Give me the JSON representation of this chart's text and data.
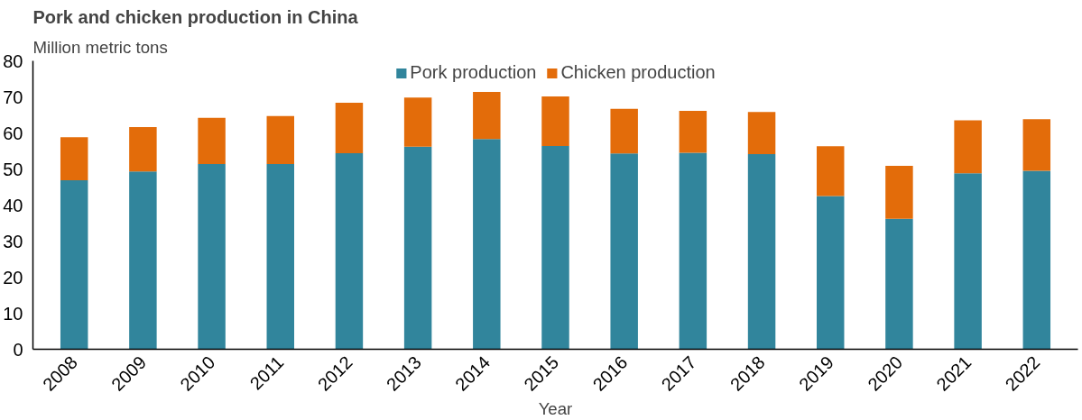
{
  "chart_data": {
    "type": "bar",
    "title": "Pork and chicken production in China",
    "ylabel": "Million metric tons",
    "xlabel": "Year",
    "categories": [
      "2008",
      "2009",
      "2010",
      "2011",
      "2012",
      "2013",
      "2014",
      "2015",
      "2016",
      "2017",
      "2018",
      "2019",
      "2020",
      "2021",
      "2022"
    ],
    "stacked": true,
    "series": [
      {
        "name": "Pork production",
        "color": "#31859c",
        "values": [
          46.9,
          49.3,
          51.4,
          51.4,
          54.4,
          56.2,
          58.3,
          56.4,
          54.3,
          54.5,
          54.1,
          42.5,
          36.2,
          48.8,
          49.5
        ]
      },
      {
        "name": "Chicken production",
        "color": "#e36c0a",
        "values": [
          11.9,
          12.3,
          12.8,
          13.3,
          14.0,
          13.6,
          13.1,
          13.7,
          12.4,
          11.6,
          11.7,
          13.8,
          14.7,
          14.7,
          14.3
        ]
      }
    ],
    "ylim": [
      0,
      80
    ],
    "yticks": [
      0,
      10,
      20,
      30,
      40,
      50,
      60,
      70,
      80
    ],
    "grid": false,
    "legend": "top"
  }
}
